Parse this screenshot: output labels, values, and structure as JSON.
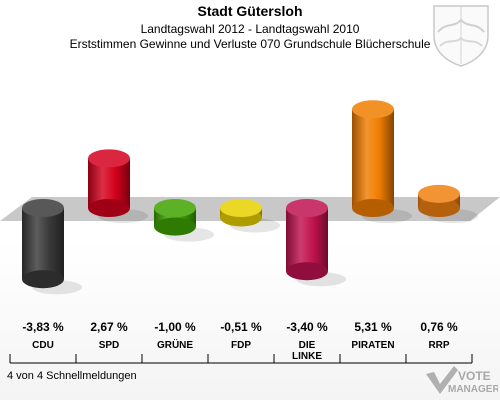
{
  "header": {
    "title": "Stadt Gütersloh",
    "subtitle": "Landtagswahl 2012 - Landtagswahl 2010",
    "description": "Erststimmen Gewinne und Verluste 070 Grundschule Blücherschule"
  },
  "footer": {
    "reports": "4 von 4 Schnellmeldungen"
  },
  "logo": {
    "line1": "VOTE",
    "line2": "MANAGER"
  },
  "chart_data": {
    "type": "bar",
    "categories": [
      "CDU",
      "SPD",
      "GRÜNE",
      "FDP",
      "DIE LINKE",
      "PIRATEN",
      "RRP"
    ],
    "values": [
      -3.83,
      2.67,
      -1.0,
      -0.51,
      -3.4,
      5.31,
      0.76
    ],
    "value_labels": [
      "-3,83 %",
      "2,67 %",
      "-1,00 %",
      "-0,51 %",
      "-3,40 %",
      "5,31 %",
      "0,76 %"
    ],
    "colors": [
      "#3a3a3a",
      "#d4001c",
      "#3fa300",
      "#e8d000",
      "#c0134e",
      "#f07d00",
      "#f08010"
    ],
    "title": "",
    "xlabel": "",
    "ylabel": ""
  }
}
